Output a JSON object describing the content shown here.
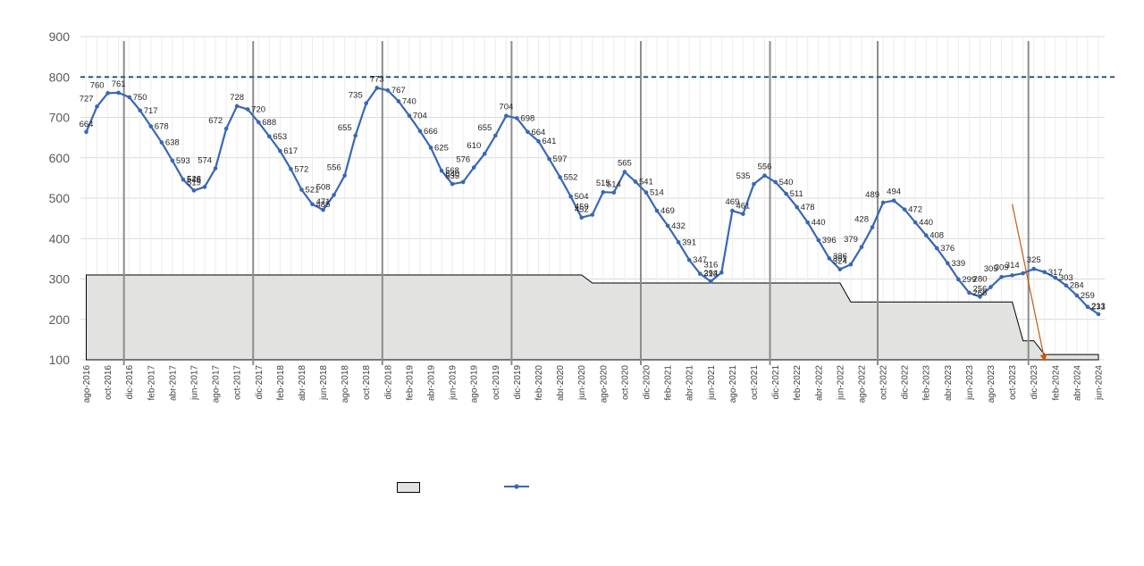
{
  "chart_data": {
    "type": "line",
    "title": "",
    "xlabel": "",
    "ylabel": "",
    "ylim": [
      100,
      900
    ],
    "yticks": [
      100,
      200,
      300,
      400,
      500,
      600,
      700,
      800,
      900
    ],
    "grid": true,
    "reference_line": {
      "value": 800,
      "style": "dashed",
      "color": "#1f5a85"
    },
    "x": [
      "ago-2016",
      "sep-2016",
      "oct-2016",
      "nov-2016",
      "dic-2016",
      "ene-2017",
      "feb-2017",
      "mar-2017",
      "abr-2017",
      "may-2017",
      "jun-2017",
      "jul-2017",
      "ago-2017",
      "sep-2017",
      "oct-2017",
      "nov-2017",
      "dic-2017",
      "ene-2018",
      "feb-2018",
      "mar-2018",
      "abr-2018",
      "may-2018",
      "jun-2018",
      "jul-2018",
      "ago-2018",
      "sep-2018",
      "oct-2018",
      "nov-2018",
      "dic-2018",
      "ene-2019",
      "feb-2019",
      "mar-2019",
      "abr-2019",
      "may-2019",
      "jun-2019",
      "jul-2019",
      "ago-2019",
      "sep-2019",
      "oct-2019",
      "nov-2019",
      "dic-2019",
      "ene-2020",
      "feb-2020",
      "mar-2020",
      "abr-2020",
      "may-2020",
      "jun-2020",
      "jul-2020",
      "ago-2020",
      "sep-2020",
      "oct-2020",
      "nov-2020",
      "dic-2020",
      "ene-2021",
      "feb-2021",
      "mar-2021",
      "abr-2021",
      "may-2021",
      "jun-2021",
      "jul-2021",
      "ago-2021",
      "sep-2021",
      "oct-2021",
      "nov-2021",
      "dic-2021",
      "ene-2022",
      "feb-2022",
      "mar-2022",
      "abr-2022",
      "may-2022",
      "jun-2022",
      "jul-2022",
      "ago-2022",
      "sep-2022",
      "oct-2022",
      "nov-2022",
      "dic-2022",
      "ene-2023",
      "feb-2023",
      "mar-2023",
      "abr-2023",
      "may-2023",
      "jun-2023",
      "jul-2023",
      "ago-2023",
      "sep-2023",
      "oct-2023",
      "nov-2023",
      "dic-2023",
      "ene-2024",
      "feb-2024",
      "mar-2024",
      "abr-2024",
      "may-2024",
      "jun-2024"
    ],
    "xtick_labels": [
      "ago-2016",
      "oct-2016",
      "dic-2016",
      "feb-2017",
      "abr-2017",
      "jun-2017",
      "ago-2017",
      "oct-2017",
      "dic-2017",
      "feb-2018",
      "abr-2018",
      "jun-2018",
      "ago-2018",
      "oct-2018",
      "dic-2018",
      "feb-2019",
      "abr-2019",
      "jun-2019",
      "ago-2019",
      "oct-2019",
      "dic-2019",
      "feb-2020",
      "abr-2020",
      "jun-2020",
      "ago-2020",
      "oct-2020",
      "dic-2020",
      "feb-2021",
      "abr-2021",
      "jun-2021",
      "ago-2021",
      "oct-2021",
      "dic-2021",
      "feb-2022",
      "abr-2022",
      "jun-2022",
      "ago-2022",
      "oct-2022",
      "dic-2022",
      "feb-2023",
      "abr-2023",
      "jun-2023",
      "ago-2023",
      "oct-2023",
      "dic-2023",
      "feb-2024",
      "abr-2024",
      "jun-2024"
    ],
    "series": [
      {
        "kind": "line",
        "color": "#3867b5",
        "marker": "circle",
        "values": [
          664,
          727,
          760,
          761,
          750,
          717,
          678,
          638,
          593,
          546,
          519,
          528,
          574,
          672,
          728,
          720,
          688,
          653,
          617,
          572,
          521,
          485,
          471,
          508,
          556,
          655,
          735,
          773,
          767,
          740,
          704,
          666,
          625,
          568,
          535,
          540,
          576,
          610,
          655,
          704,
          698,
          664,
          641,
          597,
          552,
          504,
          452,
          459,
          515,
          514,
          565,
          541,
          514,
          469,
          432,
          391,
          347,
          313,
          294,
          316,
          469,
          461,
          535,
          556,
          540,
          511,
          478,
          440,
          396,
          351,
          324,
          336,
          379,
          428,
          489,
          494,
          472,
          440,
          408,
          376,
          339,
          299,
          266,
          256,
          280,
          305,
          309,
          314,
          325,
          317,
          303,
          284,
          259,
          231,
          213
        ],
        "labels": [
          "664",
          "727",
          "760",
          "761",
          "750",
          "717",
          "678",
          "638",
          "593",
          "546",
          "519",
          "528",
          "574",
          "672",
          "728",
          "720",
          "688",
          "653",
          "617",
          "572",
          "521",
          "485",
          "471",
          "508",
          "556",
          "655",
          "735",
          "773",
          "767",
          "740",
          "704",
          "666",
          "625",
          "568",
          "535",
          "540",
          "576",
          "610",
          "655",
          "704",
          "698",
          "664",
          "641",
          "597",
          "552",
          "504",
          "452",
          "459",
          "515",
          "514",
          "565",
          "541",
          "514",
          "469",
          "432",
          "391",
          "347",
          "313",
          "294",
          "316",
          "469",
          "461",
          "535",
          "556",
          "540",
          "511",
          "478",
          "440",
          "396",
          "351",
          "324",
          "336",
          "379",
          "428",
          "489",
          "494",
          "472",
          "440",
          "408",
          "376",
          "339",
          "299",
          "266",
          "256",
          "280",
          "305",
          "309",
          "314",
          "325",
          "317",
          "303",
          "284",
          "259",
          "231",
          "213"
        ]
      },
      {
        "kind": "area",
        "color": "#e2e3e0",
        "outline": "#000000",
        "steps": [
          {
            "from": "ago-2016",
            "to": "jun-2020",
            "value": 310
          },
          {
            "from": "jul-2020",
            "to": "jun-2022",
            "value": 290
          },
          {
            "from": "jul-2022",
            "to": "oct-2023",
            "value": 243
          },
          {
            "from": "nov-2023",
            "to": "dic-2023",
            "value": 147
          },
          {
            "from": "ene-2024",
            "to": "jun-2024",
            "value": 113
          }
        ]
      }
    ],
    "year_dividers": [
      "nov-2016",
      "nov-2017",
      "nov-2018",
      "nov-2019",
      "nov-2020",
      "nov-2021",
      "sep-2022",
      "nov-2023"
    ],
    "annotations": [
      {
        "type": "arrow",
        "color": "#c55a11",
        "from": {
          "x": "oct-2023",
          "y": 485
        },
        "to": {
          "x": "ene-2024",
          "y": 100
        }
      }
    ]
  },
  "legend": {
    "area_label": "",
    "line_label": ""
  }
}
